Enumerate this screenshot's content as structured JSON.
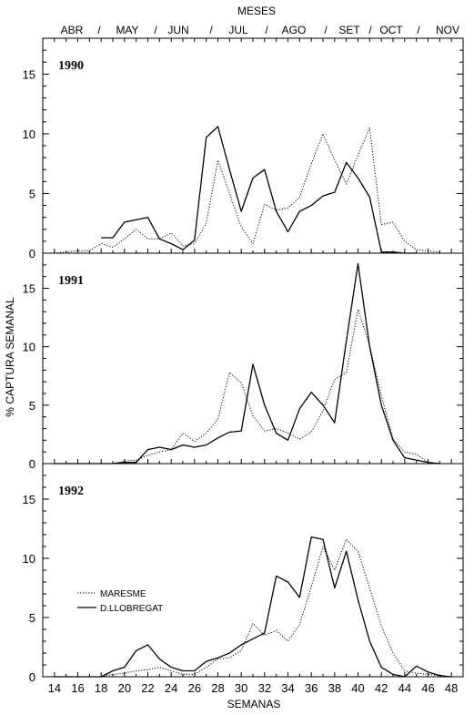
{
  "chart_data": {
    "type": "line",
    "top_axis": {
      "title": "MESES",
      "labels": [
        "ABR",
        "/",
        "MAY",
        "/",
        "JUN",
        "/",
        "JUL",
        "/",
        "AGO",
        "/",
        "SET",
        "/",
        "OCT",
        "/",
        "NOV"
      ]
    },
    "xlabel": "SEMANAS",
    "ylabel": "% CAPTURA SEMANAL",
    "x_ticks": [
      14,
      16,
      18,
      20,
      22,
      24,
      26,
      28,
      30,
      32,
      34,
      36,
      38,
      40,
      42,
      44,
      46,
      48
    ],
    "xlim": [
      13,
      49
    ],
    "ylim": [
      0,
      18
    ],
    "y_ticks": [
      0,
      5,
      10,
      15
    ],
    "legend": {
      "placement": "lower-left of bottom panel",
      "entries": [
        {
          "label": "MARESME",
          "style": "dotted"
        },
        {
          "label": "D.LLOBREGAT",
          "style": "solid"
        }
      ]
    },
    "panels": [
      {
        "title": "1990",
        "series": [
          {
            "name": "MARESME",
            "style": "dotted",
            "x": [
              14,
              15,
              16,
              17,
              18,
              19,
              20,
              21,
              22,
              23,
              24,
              25,
              26,
              27,
              28,
              29,
              30,
              31,
              32,
              33,
              34,
              35,
              36,
              37,
              38,
              39,
              40,
              41,
              42,
              43,
              44,
              45,
              46,
              47
            ],
            "y": [
              0,
              0.1,
              0.2,
              0.2,
              0.8,
              0.5,
              1.2,
              2.0,
              1.2,
              1.2,
              1.7,
              0.6,
              0.8,
              2.5,
              7.8,
              5.0,
              2.2,
              0.8,
              4.1,
              3.6,
              3.8,
              4.7,
              7.5,
              10.0,
              7.8,
              5.8,
              8.2,
              10.5,
              2.4,
              2.6,
              1.0,
              0.3,
              0.2,
              0.1
            ]
          },
          {
            "name": "D.LLOBREGAT",
            "style": "solid",
            "x": [
              18,
              19,
              20,
              21,
              22,
              23,
              24,
              25,
              26,
              27,
              28,
              29,
              30,
              31,
              32,
              33,
              34,
              35,
              36,
              37,
              38,
              39,
              40,
              41,
              42,
              43,
              44,
              45
            ],
            "y": [
              1.3,
              1.3,
              2.6,
              2.8,
              3.0,
              1.2,
              0.8,
              0.3,
              1.1,
              9.7,
              10.6,
              7.0,
              3.5,
              6.3,
              7.0,
              3.5,
              1.8,
              3.5,
              4.0,
              4.8,
              5.1,
              7.6,
              6.3,
              4.7,
              0.1,
              0.1,
              0.0,
              0.0
            ]
          }
        ]
      },
      {
        "title": "1991",
        "series": [
          {
            "name": "MARESME",
            "style": "dotted",
            "x": [
              14,
              15,
              16,
              17,
              18,
              19,
              20,
              21,
              22,
              23,
              24,
              25,
              26,
              27,
              28,
              29,
              30,
              31,
              32,
              33,
              34,
              35,
              36,
              37,
              38,
              39,
              40,
              41,
              42,
              43,
              44,
              45,
              46,
              47
            ],
            "y": [
              0,
              0,
              0,
              0,
              0,
              0,
              0.2,
              0.3,
              0.7,
              1.0,
              1.2,
              2.6,
              1.9,
              2.6,
              3.8,
              7.8,
              6.9,
              4.1,
              2.8,
              3.0,
              2.6,
              2.1,
              2.7,
              4.5,
              7.2,
              7.8,
              13.2,
              10.1,
              5.8,
              2.1,
              1.0,
              0.8,
              0.1,
              0
            ]
          },
          {
            "name": "D.LLOBREGAT",
            "style": "solid",
            "x": [
              14,
              15,
              16,
              17,
              18,
              19,
              20,
              21,
              22,
              23,
              24,
              25,
              26,
              27,
              28,
              29,
              30,
              31,
              32,
              33,
              34,
              35,
              36,
              37,
              38,
              39,
              40,
              41,
              42,
              43,
              44,
              45,
              46,
              47
            ],
            "y": [
              0,
              0,
              0,
              0,
              0,
              0,
              0.1,
              0.1,
              1.2,
              1.4,
              1.2,
              1.6,
              1.4,
              1.6,
              2.2,
              2.7,
              2.8,
              8.5,
              5.0,
              2.6,
              2.0,
              4.7,
              6.1,
              5.0,
              3.5,
              10.5,
              17.1,
              10.0,
              5.0,
              2.0,
              0.5,
              0.3,
              0.1,
              0
            ]
          }
        ]
      },
      {
        "title": "1992",
        "series": [
          {
            "name": "MARESME",
            "style": "dotted",
            "x": [
              14,
              15,
              16,
              17,
              18,
              19,
              20,
              21,
              22,
              23,
              24,
              25,
              26,
              27,
              28,
              29,
              30,
              31,
              32,
              33,
              34,
              35,
              36,
              37,
              38,
              39,
              40,
              41,
              42,
              43,
              44,
              45,
              46,
              47,
              48
            ],
            "y": [
              0,
              0,
              0,
              0,
              0,
              0.2,
              0.3,
              0.5,
              0.6,
              0.8,
              0.5,
              0.2,
              0.2,
              0.8,
              1.5,
              1.6,
              2.2,
              4.5,
              3.5,
              3.9,
              3.0,
              4.4,
              7.6,
              11.0,
              9.0,
              11.6,
              10.6,
              7.5,
              4.3,
              2.0,
              0.5,
              0.3,
              0.2,
              0.1,
              0
            ]
          },
          {
            "name": "D.LLOBREGAT",
            "style": "solid",
            "x": [
              14,
              15,
              16,
              17,
              18,
              19,
              20,
              21,
              22,
              23,
              24,
              25,
              26,
              27,
              28,
              29,
              30,
              31,
              32,
              33,
              34,
              35,
              36,
              37,
              38,
              39,
              40,
              41,
              42,
              43,
              44,
              45,
              46,
              47,
              48
            ],
            "y": [
              0,
              0,
              0,
              0,
              0,
              0.5,
              0.8,
              2.2,
              2.7,
              1.5,
              0.8,
              0.5,
              0.5,
              1.3,
              1.6,
              2.0,
              2.7,
              3.2,
              3.7,
              8.5,
              8.0,
              6.7,
              11.8,
              11.6,
              7.5,
              10.6,
              6.5,
              3.0,
              0.8,
              0.2,
              0,
              0.9,
              0.4,
              0.1,
              0
            ]
          }
        ]
      }
    ]
  }
}
